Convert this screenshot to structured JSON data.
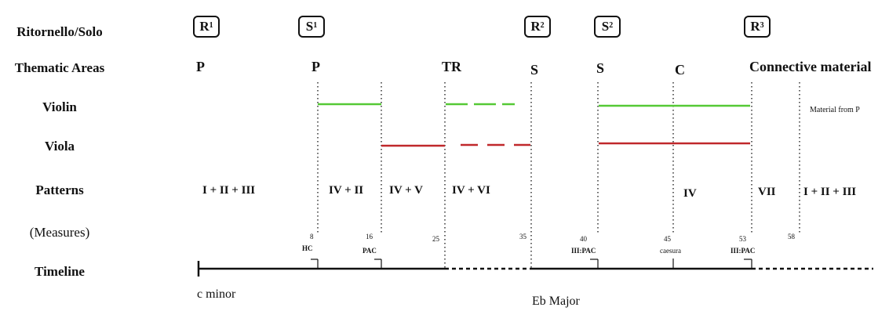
{
  "row_labels": {
    "ritornello_solo": "Ritornello/Solo",
    "thematic_areas": "Thematic Areas",
    "violin": "Violin",
    "viola": "Viola",
    "patterns": "Patterns",
    "measures": "(Measures)",
    "timeline": "Timeline"
  },
  "sections": [
    {
      "letter": "R",
      "number": "1"
    },
    {
      "letter": "S",
      "number": "1"
    },
    {
      "letter": "R",
      "number": "2"
    },
    {
      "letter": "S",
      "number": "2"
    },
    {
      "letter": "R",
      "number": "3"
    }
  ],
  "thematic_areas": [
    "P",
    "P",
    "TR",
    "S",
    "S",
    "C",
    "Connective material"
  ],
  "patterns": [
    "I + II + III",
    "IV + II",
    "IV + V",
    "IV + VI",
    "IV",
    "VII",
    "I + II + III"
  ],
  "measures": [
    "8",
    "16",
    "25",
    "35",
    "40",
    "45",
    "53",
    "58"
  ],
  "cadences": [
    "HC",
    "PAC",
    "III:PAC",
    "caesura",
    "III:PAC"
  ],
  "keys": [
    "c minor",
    "Eb Major"
  ],
  "notes": {
    "violin_after": "Material from P"
  },
  "colors": {
    "violin": "#55c935",
    "viola": "#c0282b",
    "ink": "#111111"
  }
}
